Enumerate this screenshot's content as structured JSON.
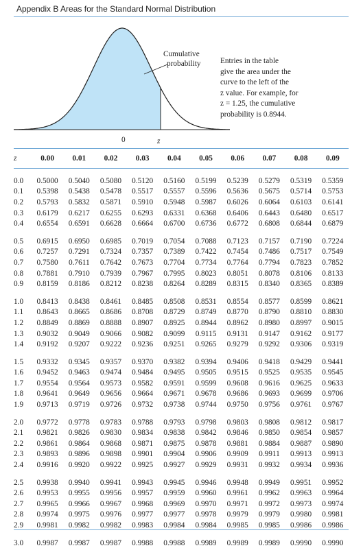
{
  "header": {
    "title": "Appendix B  Areas for the Standard Normal Distribution"
  },
  "figure": {
    "callout_label_line1": "Cumulative",
    "callout_label_line2": "probability",
    "zero_label": "0",
    "z_label": "z"
  },
  "callout": {
    "lines": [
      "Entries in the table",
      "give the area under the",
      "curve to the left of the",
      "z value. For example, for",
      "z = 1.25, the cumulative",
      "probability is 0.8944."
    ]
  },
  "colors": {
    "accent_rule": "#6fa8d6",
    "shaded_area": "#bfe3f7",
    "curve": "#222222"
  },
  "table": {
    "headers": [
      "z",
      "0.00",
      "0.01",
      "0.02",
      "0.03",
      "0.04",
      "0.05",
      "0.06",
      "0.07",
      "0.08",
      "0.09"
    ],
    "rows": [
      [
        "0.0",
        "0.5000",
        "0.5040",
        "0.5080",
        "0.5120",
        "0.5160",
        "0.5199",
        "0.5239",
        "0.5279",
        "0.5319",
        "0.5359"
      ],
      [
        "0.1",
        "0.5398",
        "0.5438",
        "0.5478",
        "0.5517",
        "0.5557",
        "0.5596",
        "0.5636",
        "0.5675",
        "0.5714",
        "0.5753"
      ],
      [
        "0.2",
        "0.5793",
        "0.5832",
        "0.5871",
        "0.5910",
        "0.5948",
        "0.5987",
        "0.6026",
        "0.6064",
        "0.6103",
        "0.6141"
      ],
      [
        "0.3",
        "0.6179",
        "0.6217",
        "0.6255",
        "0.6293",
        "0.6331",
        "0.6368",
        "0.6406",
        "0.6443",
        "0.6480",
        "0.6517"
      ],
      [
        "0.4",
        "0.6554",
        "0.6591",
        "0.6628",
        "0.6664",
        "0.6700",
        "0.6736",
        "0.6772",
        "0.6808",
        "0.6844",
        "0.6879"
      ],
      [
        "0.5",
        "0.6915",
        "0.6950",
        "0.6985",
        "0.7019",
        "0.7054",
        "0.7088",
        "0.7123",
        "0.7157",
        "0.7190",
        "0.7224"
      ],
      [
        "0.6",
        "0.7257",
        "0.7291",
        "0.7324",
        "0.7357",
        "0.7389",
        "0.7422",
        "0.7454",
        "0.7486",
        "0.7517",
        "0.7549"
      ],
      [
        "0.7",
        "0.7580",
        "0.7611",
        "0.7642",
        "0.7673",
        "0.7704",
        "0.7734",
        "0.7764",
        "0.7794",
        "0.7823",
        "0.7852"
      ],
      [
        "0.8",
        "0.7881",
        "0.7910",
        "0.7939",
        "0.7967",
        "0.7995",
        "0.8023",
        "0.8051",
        "0.8078",
        "0.8106",
        "0.8133"
      ],
      [
        "0.9",
        "0.8159",
        "0.8186",
        "0.8212",
        "0.8238",
        "0.8264",
        "0.8289",
        "0.8315",
        "0.8340",
        "0.8365",
        "0.8389"
      ],
      [
        "1.0",
        "0.8413",
        "0.8438",
        "0.8461",
        "0.8485",
        "0.8508",
        "0.8531",
        "0.8554",
        "0.8577",
        "0.8599",
        "0.8621"
      ],
      [
        "1.1",
        "0.8643",
        "0.8665",
        "0.8686",
        "0.8708",
        "0.8729",
        "0.8749",
        "0.8770",
        "0.8790",
        "0.8810",
        "0.8830"
      ],
      [
        "1.2",
        "0.8849",
        "0.8869",
        "0.8888",
        "0.8907",
        "0.8925",
        "0.8944",
        "0.8962",
        "0.8980",
        "0.8997",
        "0.9015"
      ],
      [
        "1.3",
        "0.9032",
        "0.9049",
        "0.9066",
        "0.9082",
        "0.9099",
        "0.9115",
        "0.9131",
        "0.9147",
        "0.9162",
        "0.9177"
      ],
      [
        "1.4",
        "0.9192",
        "0.9207",
        "0.9222",
        "0.9236",
        "0.9251",
        "0.9265",
        "0.9279",
        "0.9292",
        "0.9306",
        "0.9319"
      ],
      [
        "1.5",
        "0.9332",
        "0.9345",
        "0.9357",
        "0.9370",
        "0.9382",
        "0.9394",
        "0.9406",
        "0.9418",
        "0.9429",
        "0.9441"
      ],
      [
        "1.6",
        "0.9452",
        "0.9463",
        "0.9474",
        "0.9484",
        "0.9495",
        "0.9505",
        "0.9515",
        "0.9525",
        "0.9535",
        "0.9545"
      ],
      [
        "1.7",
        "0.9554",
        "0.9564",
        "0.9573",
        "0.9582",
        "0.9591",
        "0.9599",
        "0.9608",
        "0.9616",
        "0.9625",
        "0.9633"
      ],
      [
        "1.8",
        "0.9641",
        "0.9649",
        "0.9656",
        "0.9664",
        "0.9671",
        "0.9678",
        "0.9686",
        "0.9693",
        "0.9699",
        "0.9706"
      ],
      [
        "1.9",
        "0.9713",
        "0.9719",
        "0.9726",
        "0.9732",
        "0.9738",
        "0.9744",
        "0.9750",
        "0.9756",
        "0.9761",
        "0.9767"
      ],
      [
        "2.0",
        "0.9772",
        "0.9778",
        "0.9783",
        "0.9788",
        "0.9793",
        "0.9798",
        "0.9803",
        "0.9808",
        "0.9812",
        "0.9817"
      ],
      [
        "2.1",
        "0.9821",
        "0.9826",
        "0.9830",
        "0.9834",
        "0.9838",
        "0.9842",
        "0.9846",
        "0.9850",
        "0.9854",
        "0.9857"
      ],
      [
        "2.2",
        "0.9861",
        "0.9864",
        "0.9868",
        "0.9871",
        "0.9875",
        "0.9878",
        "0.9881",
        "0.9884",
        "0.9887",
        "0.9890"
      ],
      [
        "2.3",
        "0.9893",
        "0.9896",
        "0.9898",
        "0.9901",
        "0.9904",
        "0.9906",
        "0.9909",
        "0.9911",
        "0.9913",
        "0.9913"
      ],
      [
        "2.4",
        "0.9916",
        "0.9920",
        "0.9922",
        "0.9925",
        "0.9927",
        "0.9929",
        "0.9931",
        "0.9932",
        "0.9934",
        "0.9936"
      ],
      [
        "2.5",
        "0.9938",
        "0.9940",
        "0.9941",
        "0.9943",
        "0.9945",
        "0.9946",
        "0.9948",
        "0.9949",
        "0.9951",
        "0.9952"
      ],
      [
        "2.6",
        "0.9953",
        "0.9955",
        "0.9956",
        "0.9957",
        "0.9959",
        "0.9960",
        "0.9961",
        "0.9962",
        "0.9963",
        "0.9964"
      ],
      [
        "2.7",
        "0.9965",
        "0.9966",
        "0.9967",
        "0.9968",
        "0.9969",
        "0.9970",
        "0.9971",
        "0.9972",
        "0.9973",
        "0.9974"
      ],
      [
        "2.8",
        "0.9974",
        "0.9975",
        "0.9976",
        "0.9977",
        "0.9977",
        "0.9978",
        "0.9979",
        "0.9979",
        "0.9980",
        "0.9981"
      ],
      [
        "2.9",
        "0.9981",
        "0.9982",
        "0.9982",
        "0.9983",
        "0.9984",
        "0.9984",
        "0.9985",
        "0.9985",
        "0.9986",
        "0.9986"
      ],
      [
        "3.0",
        "0.9987",
        "0.9987",
        "0.9987",
        "0.9988",
        "0.9988",
        "0.9989",
        "0.9989",
        "0.9989",
        "0.9990",
        "0.9990"
      ]
    ]
  }
}
